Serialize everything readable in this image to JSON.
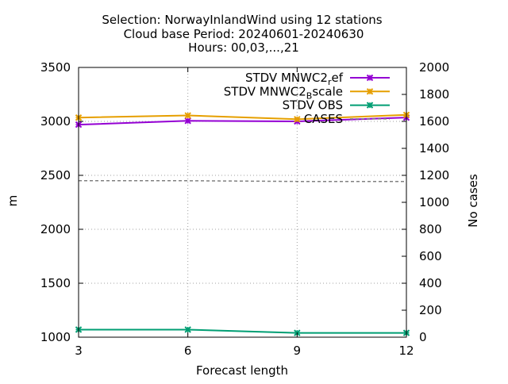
{
  "chart_data": {
    "type": "line",
    "title_lines": [
      "Selection: NorwayInlandWind using    12 stations",
      "Cloud base   Period: 20240601-20240630",
      "Hours: 00,03,...,21"
    ],
    "xlabel": "Forecast length",
    "ylabel": "m",
    "y2label": "No cases",
    "x_ticks": [
      3,
      6,
      9,
      12
    ],
    "y_ticks": [
      1000,
      1500,
      2000,
      2500,
      3000,
      3500
    ],
    "y2_ticks": [
      0,
      200,
      400,
      600,
      800,
      1000,
      1200,
      1400,
      1600,
      1800,
      2000
    ],
    "xlim": [
      3,
      12
    ],
    "ylim": [
      1000,
      3500
    ],
    "y2lim": [
      0,
      2000
    ],
    "grid": true,
    "legend_position": "top-right",
    "series": [
      {
        "name": "STDV MNWC2_ref",
        "legend_main": "STDV MNWC2",
        "legend_sub": "r",
        "legend_tail": "ef",
        "color": "#9400d3",
        "marker": "x",
        "axis": "y",
        "x": [
          3,
          6,
          9,
          12
        ],
        "values": [
          2970,
          3005,
          3000,
          3035
        ]
      },
      {
        "name": "STDV MNWC2_Bscale",
        "legend_main": "STDV MNWC2",
        "legend_sub": "B",
        "legend_tail": "scale",
        "color": "#e69f00",
        "marker": "x",
        "axis": "y",
        "x": [
          3,
          6,
          9,
          12
        ],
        "values": [
          3035,
          3055,
          3020,
          3060
        ]
      },
      {
        "name": "STDV OBS",
        "legend_main": "STDV OBS",
        "legend_sub": "",
        "legend_tail": "",
        "color": "#009e73",
        "marker": "x",
        "axis": "y",
        "x": [
          3,
          6,
          9,
          12
        ],
        "values": [
          1070,
          1070,
          1040,
          1040
        ]
      },
      {
        "name": "CASES",
        "legend_main": "CASES",
        "legend_sub": "",
        "legend_tail": "",
        "color": "#808080",
        "marker": "none",
        "dashed": true,
        "axis": "y2",
        "x": [
          3,
          6,
          9,
          12
        ],
        "values": [
          1160,
          1160,
          1155,
          1155
        ]
      }
    ]
  }
}
